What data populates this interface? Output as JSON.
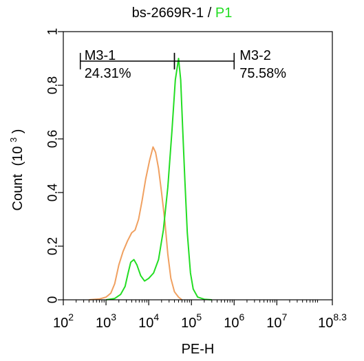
{
  "chart_data": {
    "type": "line",
    "title": "bs-2669R-1",
    "title_separator": "/",
    "title_gate": "P1",
    "xlabel": "PE-H",
    "ylabel_main": "Count",
    "ylabel_unit": "(10",
    "ylabel_unit_exp": "3",
    "ylabel_unit_close": ")",
    "x_scale": "log",
    "xlim": [
      100,
      199526231
    ],
    "ylim": [
      0,
      1
    ],
    "x_tick_labels": [
      {
        "base": "10",
        "exp": "2",
        "value": 100
      },
      {
        "base": "10",
        "exp": "3",
        "value": 1000
      },
      {
        "base": "10",
        "exp": "4",
        "value": 10000
      },
      {
        "base": "10",
        "exp": "5",
        "value": 100000
      },
      {
        "base": "10",
        "exp": "6",
        "value": 1000000
      },
      {
        "base": "10",
        "exp": "7",
        "value": 10000000
      },
      {
        "base": "10",
        "exp": "8.3",
        "value": 199526231
      }
    ],
    "y_ticks": [
      0,
      0.2,
      0.4,
      0.6,
      0.8,
      1
    ],
    "y_tick_labels": [
      "0",
      "0.2",
      "0.4",
      "0.6",
      "0.8",
      "1"
    ],
    "colors": {
      "series_orange": "#f0a060",
      "series_green": "#22dd22",
      "axis": "#000000"
    },
    "series": [
      {
        "color": "#f0a060",
        "points": [
          [
            400,
            0
          ],
          [
            700,
            0.003
          ],
          [
            1000,
            0.01
          ],
          [
            1300,
            0.025
          ],
          [
            1600,
            0.06
          ],
          [
            2000,
            0.13
          ],
          [
            2500,
            0.18
          ],
          [
            3200,
            0.22
          ],
          [
            4000,
            0.25
          ],
          [
            4800,
            0.26
          ],
          [
            5800,
            0.3
          ],
          [
            7000,
            0.37
          ],
          [
            8500,
            0.45
          ],
          [
            10500,
            0.52
          ],
          [
            12600,
            0.57
          ],
          [
            14500,
            0.55
          ],
          [
            17000,
            0.49
          ],
          [
            20000,
            0.4
          ],
          [
            24000,
            0.29
          ],
          [
            28000,
            0.17
          ],
          [
            33000,
            0.08
          ],
          [
            40000,
            0.03
          ],
          [
            50000,
            0.01
          ],
          [
            60000,
            0
          ]
        ]
      },
      {
        "color": "#22dd22",
        "points": [
          [
            1000,
            0
          ],
          [
            1600,
            0.005
          ],
          [
            2200,
            0.02
          ],
          [
            2800,
            0.05
          ],
          [
            3300,
            0.1
          ],
          [
            3800,
            0.14
          ],
          [
            4500,
            0.15
          ],
          [
            5300,
            0.13
          ],
          [
            6500,
            0.09
          ],
          [
            8000,
            0.07
          ],
          [
            10000,
            0.08
          ],
          [
            13000,
            0.1
          ],
          [
            17000,
            0.15
          ],
          [
            22000,
            0.26
          ],
          [
            28000,
            0.42
          ],
          [
            35000,
            0.63
          ],
          [
            42000,
            0.82
          ],
          [
            50000,
            0.9
          ],
          [
            56000,
            0.82
          ],
          [
            62000,
            0.65
          ],
          [
            70000,
            0.45
          ],
          [
            80000,
            0.25
          ],
          [
            95000,
            0.1
          ],
          [
            110000,
            0.04
          ],
          [
            140000,
            0.01
          ],
          [
            200000,
            0.002
          ],
          [
            300000,
            0
          ]
        ]
      }
    ],
    "markers": [
      {
        "name": "M3-1",
        "percent": "24.31%",
        "x_start": 250,
        "x_end": 40000,
        "y": 0.89
      },
      {
        "name": "M3-2",
        "percent": "75.58%",
        "x_start": 40000,
        "x_end": 1000000,
        "y": 0.89
      }
    ]
  }
}
